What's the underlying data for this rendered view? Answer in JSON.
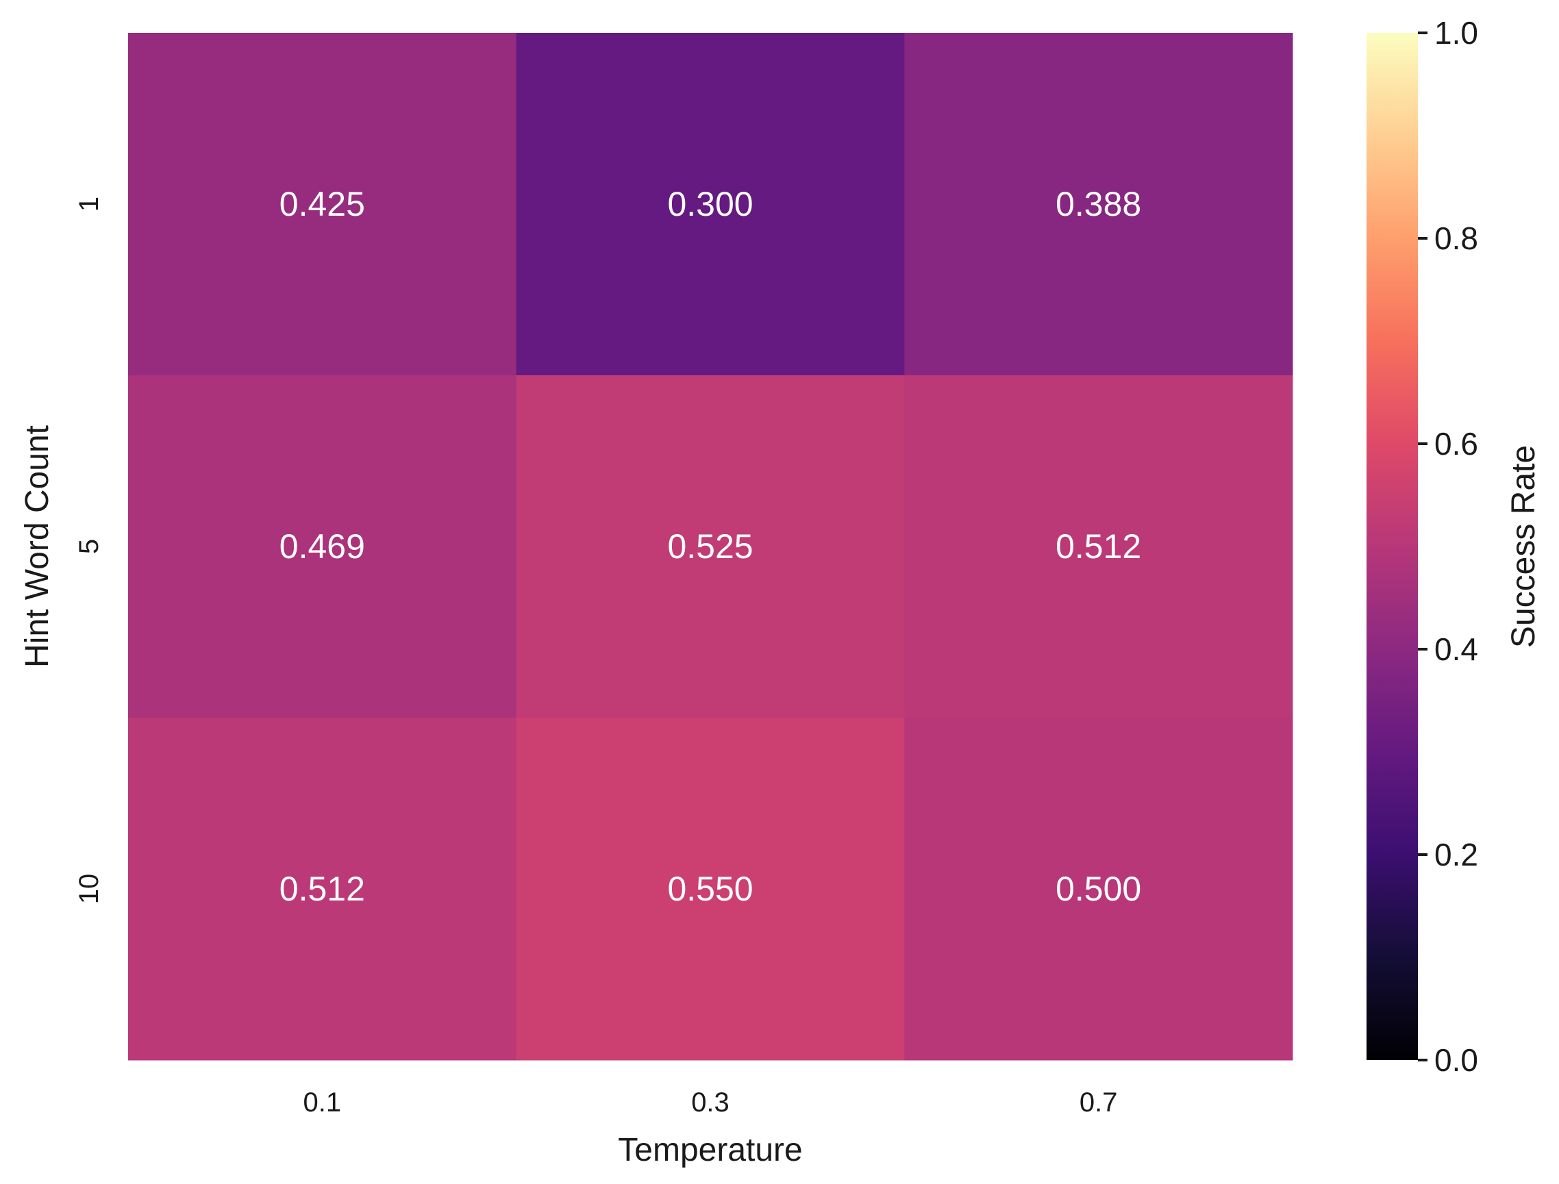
{
  "chart_data": {
    "type": "heatmap",
    "xlabel": "Temperature",
    "ylabel": "Hint Word Count",
    "x_categories": [
      "0.1",
      "0.3",
      "0.7"
    ],
    "y_categories": [
      "1",
      "5",
      "10"
    ],
    "values": [
      [
        0.425,
        0.3,
        0.388
      ],
      [
        0.469,
        0.525,
        0.512
      ],
      [
        0.512,
        0.55,
        0.5
      ]
    ],
    "cell_labels": [
      [
        "0.425",
        "0.300",
        "0.388"
      ],
      [
        "0.469",
        "0.525",
        "0.512"
      ],
      [
        "0.512",
        "0.550",
        "0.500"
      ]
    ],
    "colormap": "magma",
    "colorbar": {
      "label": "Success Rate",
      "vmin": 0.0,
      "vmax": 1.0,
      "ticks": [
        "0.0",
        "0.2",
        "0.4",
        "0.6",
        "0.8",
        "1.0"
      ]
    },
    "grid": false
  }
}
